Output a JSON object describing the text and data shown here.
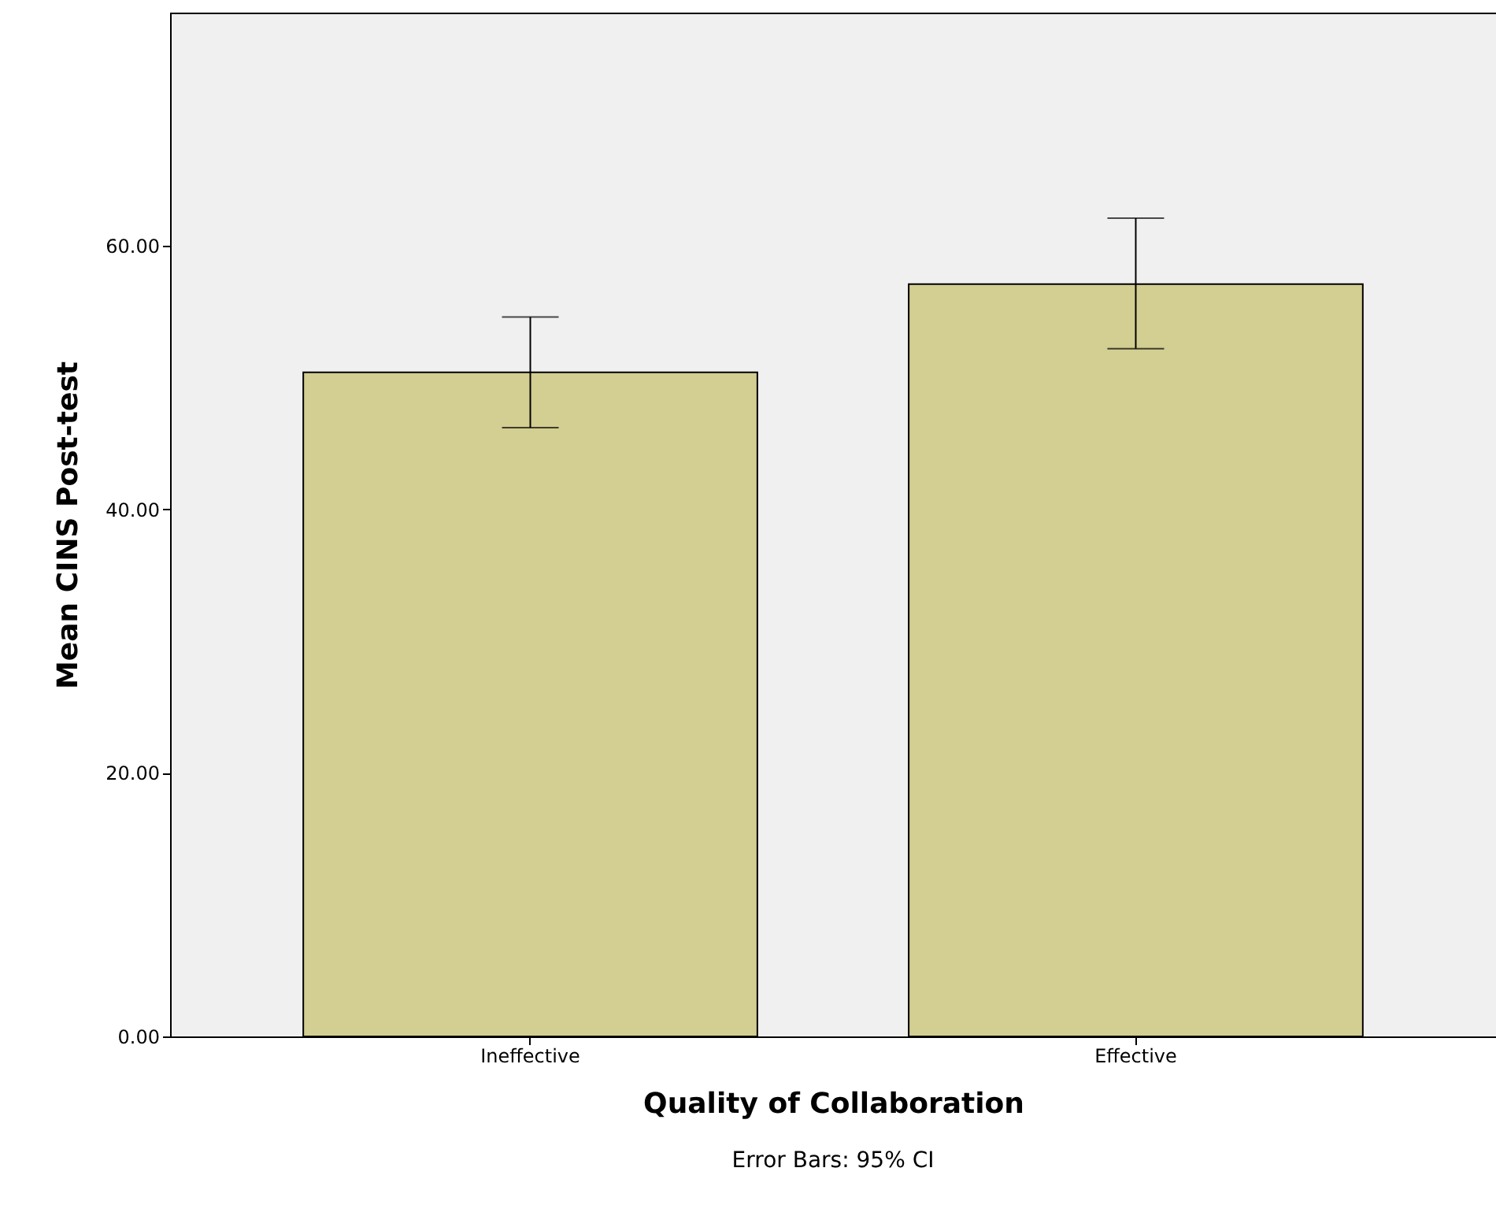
{
  "chart_data": {
    "type": "bar",
    "xlabel": "Quality of Collaboration",
    "ylabel": "Mean CINS Post-test",
    "categories": [
      "Ineffective",
      "Effective"
    ],
    "values": [
      50.4,
      57.1
    ],
    "errors": [
      [
        46.2,
        54.6
      ],
      [
        52.2,
        62.1
      ]
    ],
    "color": "#d3ce91",
    "ylim": [
      0,
      77.7
    ],
    "yticks": [
      {
        "value": 0,
        "label": "0.00"
      },
      {
        "value": 20,
        "label": "20.00"
      },
      {
        "value": 40,
        "label": "40.00"
      },
      {
        "value": 60,
        "label": "60.00"
      }
    ],
    "grid": false,
    "annotations": [
      "Error Bars: 95% CI"
    ]
  }
}
